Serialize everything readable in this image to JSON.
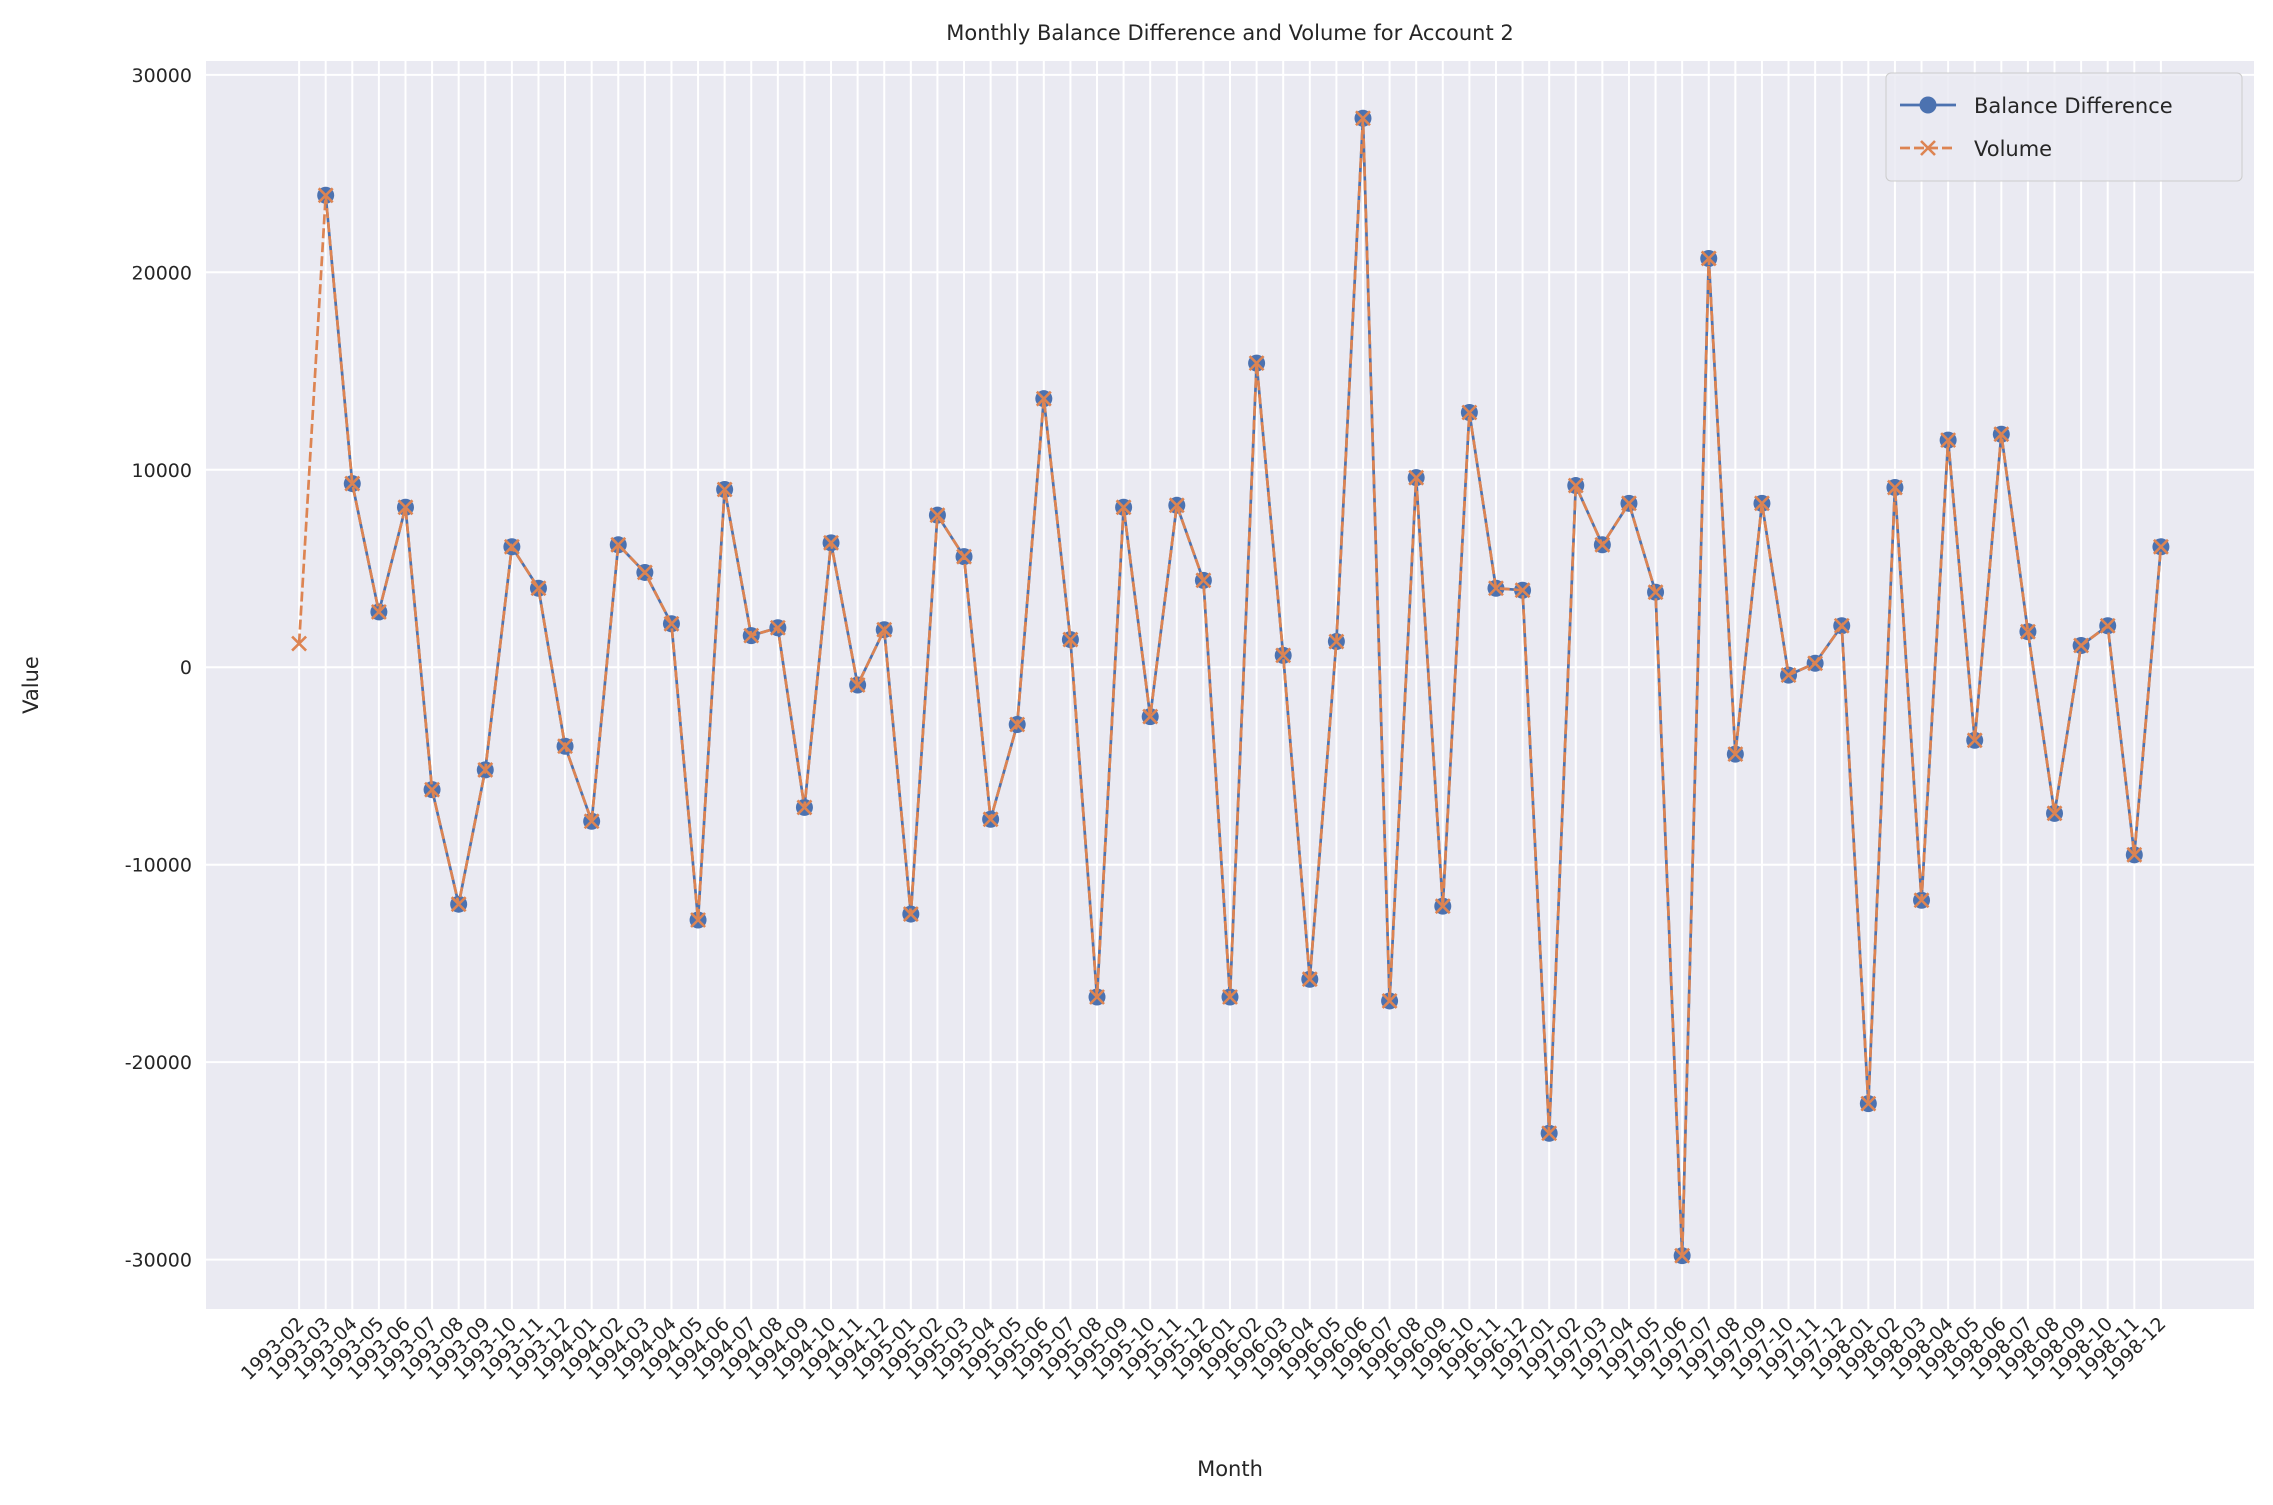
{
  "chart_data": {
    "type": "line",
    "title": "Monthly Balance Difference and Volume for Account 2",
    "x_label": "Month",
    "y_label": "Value",
    "categories": [
      "1993-02",
      "1993-03",
      "1993-04",
      "1993-05",
      "1993-06",
      "1993-07",
      "1993-08",
      "1993-09",
      "1993-10",
      "1993-11",
      "1993-12",
      "1994-01",
      "1994-02",
      "1994-03",
      "1994-04",
      "1994-05",
      "1994-06",
      "1994-07",
      "1994-08",
      "1994-09",
      "1994-10",
      "1994-11",
      "1994-12",
      "1995-01",
      "1995-02",
      "1995-03",
      "1995-04",
      "1995-05",
      "1995-06",
      "1995-07",
      "1995-08",
      "1995-09",
      "1995-10",
      "1995-11",
      "1995-12",
      "1996-01",
      "1996-02",
      "1996-03",
      "1996-04",
      "1996-05",
      "1996-06",
      "1996-07",
      "1996-08",
      "1996-09",
      "1996-10",
      "1996-11",
      "1996-12",
      "1997-01",
      "1997-02",
      "1997-03",
      "1997-04",
      "1997-05",
      "1997-06",
      "1997-07",
      "1997-08",
      "1997-09",
      "1997-10",
      "1997-11",
      "1997-12",
      "1998-01",
      "1998-02",
      "1998-03",
      "1998-04",
      "1998-05",
      "1998-06",
      "1998-07",
      "1998-08",
      "1998-09",
      "1998-10",
      "1998-11",
      "1998-12"
    ],
    "series": [
      {
        "name": "Balance Difference",
        "color": "#4c72b0",
        "marker": "o",
        "dash": "solid",
        "values": [
          null,
          23900,
          9300,
          2800,
          8100,
          -6200,
          -12000,
          -5200,
          6100,
          4000,
          -4000,
          -7800,
          6200,
          4800,
          2200,
          -12800,
          9000,
          1600,
          2000,
          -7100,
          6300,
          -900,
          1900,
          -12500,
          7700,
          5600,
          -7700,
          -2900,
          13600,
          1400,
          -16700,
          8100,
          -2500,
          8200,
          4400,
          -16700,
          15400,
          600,
          -15800,
          1300,
          27800,
          -16900,
          9600,
          -12100,
          12900,
          4000,
          3900,
          -23600,
          9200,
          6200,
          8300,
          3800,
          -29800,
          20700,
          -4400,
          8300,
          -400,
          200,
          2100,
          -22100,
          9100,
          -11800,
          11500,
          -3700,
          11800,
          1800,
          -7400,
          1100,
          2100,
          -9500,
          6100
        ]
      },
      {
        "name": "Volume",
        "color": "#dd8452",
        "marker": "x",
        "dash": "dashed",
        "values": [
          1200,
          23900,
          9300,
          2800,
          8100,
          -6200,
          -12000,
          -5200,
          6100,
          4000,
          -4000,
          -7800,
          6200,
          4800,
          2200,
          -12800,
          9000,
          1600,
          2000,
          -7100,
          6300,
          -900,
          1900,
          -12500,
          7700,
          5600,
          -7700,
          -2900,
          13600,
          1400,
          -16700,
          8100,
          -2500,
          8200,
          4400,
          -16700,
          15400,
          600,
          -15800,
          1300,
          27800,
          -16900,
          9600,
          -12100,
          12900,
          4000,
          3900,
          -23600,
          9200,
          6200,
          8300,
          3800,
          -29800,
          20700,
          -4400,
          8300,
          -400,
          200,
          2100,
          -22100,
          9100,
          -11800,
          11500,
          -3700,
          11800,
          1800,
          -7400,
          1100,
          2100,
          -9500,
          6100
        ]
      }
    ],
    "ylim": [
      -32500,
      30700
    ],
    "yticks": [
      -30000,
      -20000,
      -10000,
      0,
      10000,
      20000,
      30000
    ],
    "grid": true,
    "legend": "upper right"
  }
}
